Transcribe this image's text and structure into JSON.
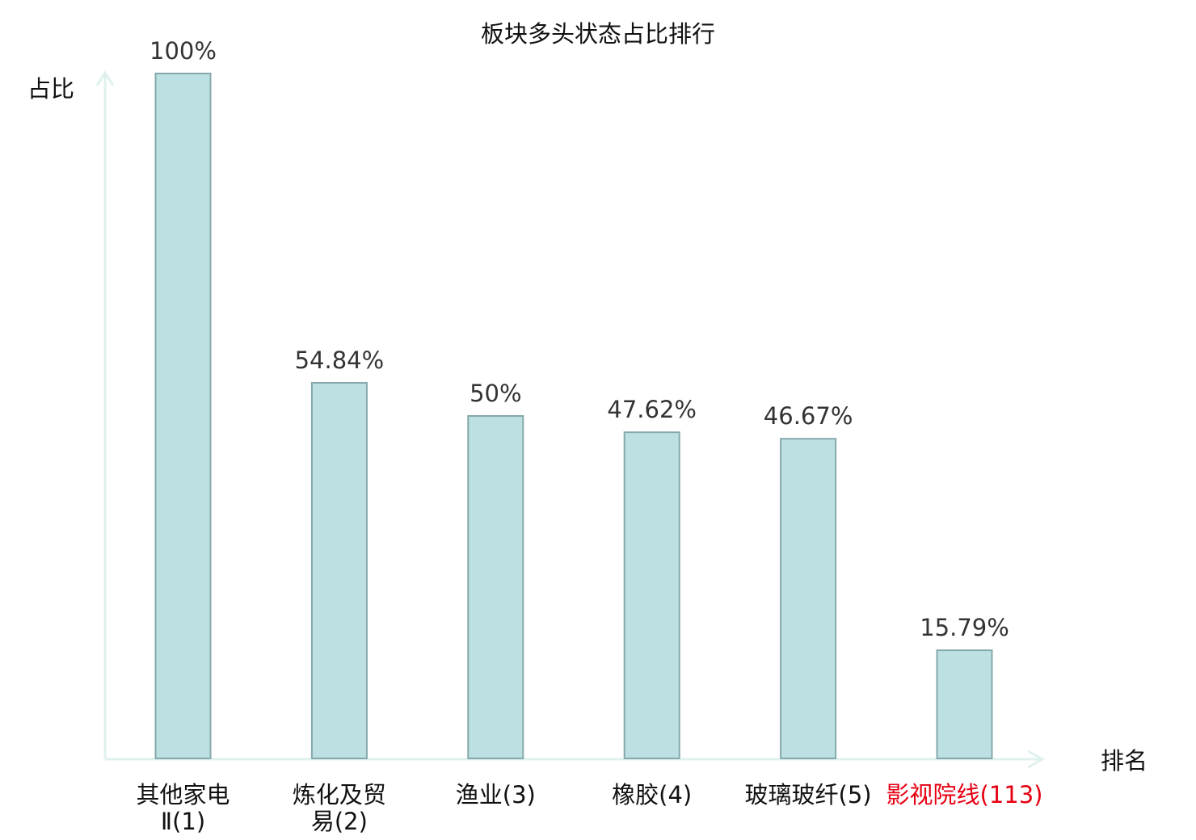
{
  "chart_data": {
    "type": "bar",
    "title": "板块多头状态占比排行",
    "ylabel": "占比",
    "xlabel": "排名",
    "ylim": [
      0,
      100
    ],
    "grid": false,
    "categories": [
      {
        "lines": [
          "其他家电",
          "Ⅱ(1)"
        ],
        "highlight": false
      },
      {
        "lines": [
          "炼化及贸",
          "易(2)"
        ],
        "highlight": false
      },
      {
        "lines": [
          "渔业(3)"
        ],
        "highlight": false
      },
      {
        "lines": [
          "橡胶(4)"
        ],
        "highlight": false
      },
      {
        "lines": [
          "玻璃玻纤(5)"
        ],
        "highlight": false
      },
      {
        "lines": [
          "影视院线(113)"
        ],
        "highlight": true
      }
    ],
    "values": [
      100,
      54.84,
      50,
      47.62,
      46.67,
      15.79
    ],
    "value_labels": [
      "100%",
      "54.84%",
      "50%",
      "47.62%",
      "46.67%",
      "15.79%"
    ],
    "colors": {
      "bar_fill": "#bde0e3",
      "bar_stroke": "#86a9ab",
      "axis": "#dff1ee",
      "text": "#333333",
      "title": "#111111",
      "highlight": "#e60012"
    }
  }
}
